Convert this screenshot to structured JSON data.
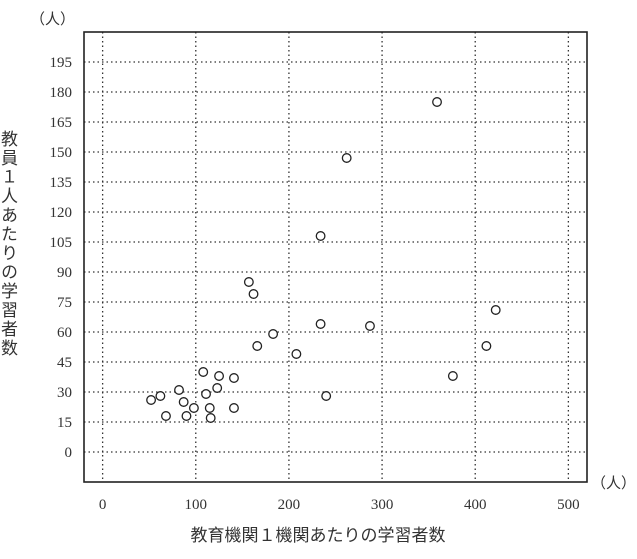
{
  "chart_data": {
    "type": "scatter",
    "title": "",
    "xlabel": "教育機関１機関あたりの学習者数",
    "ylabel": "教員１人あたりの学習者数",
    "x_unit": "（人）",
    "y_unit": "（人）",
    "xlim": [
      -20,
      520
    ],
    "ylim": [
      -15,
      210
    ],
    "xticks": [
      "0",
      "100",
      "200",
      "300",
      "400",
      "500"
    ],
    "yticks": [
      "0",
      "15",
      "30",
      "45",
      "60",
      "75",
      "90",
      "105",
      "120",
      "135",
      "150",
      "165",
      "180",
      "195"
    ],
    "grid": true,
    "marker": "open-circle",
    "points": [
      {
        "x": 52,
        "y": 26
      },
      {
        "x": 62,
        "y": 28
      },
      {
        "x": 68,
        "y": 18
      },
      {
        "x": 82,
        "y": 31
      },
      {
        "x": 87,
        "y": 25
      },
      {
        "x": 90,
        "y": 18
      },
      {
        "x": 98,
        "y": 22
      },
      {
        "x": 108,
        "y": 40
      },
      {
        "x": 111,
        "y": 29
      },
      {
        "x": 115,
        "y": 22
      },
      {
        "x": 116,
        "y": 17
      },
      {
        "x": 123,
        "y": 32
      },
      {
        "x": 125,
        "y": 38
      },
      {
        "x": 141,
        "y": 37
      },
      {
        "x": 141,
        "y": 22
      },
      {
        "x": 157,
        "y": 85
      },
      {
        "x": 162,
        "y": 79
      },
      {
        "x": 166,
        "y": 53
      },
      {
        "x": 183,
        "y": 59
      },
      {
        "x": 208,
        "y": 49
      },
      {
        "x": 234,
        "y": 108
      },
      {
        "x": 234,
        "y": 64
      },
      {
        "x": 240,
        "y": 28
      },
      {
        "x": 262,
        "y": 147
      },
      {
        "x": 287,
        "y": 63
      },
      {
        "x": 359,
        "y": 175
      },
      {
        "x": 376,
        "y": 38
      },
      {
        "x": 412,
        "y": 53
      },
      {
        "x": 422,
        "y": 71
      }
    ]
  }
}
